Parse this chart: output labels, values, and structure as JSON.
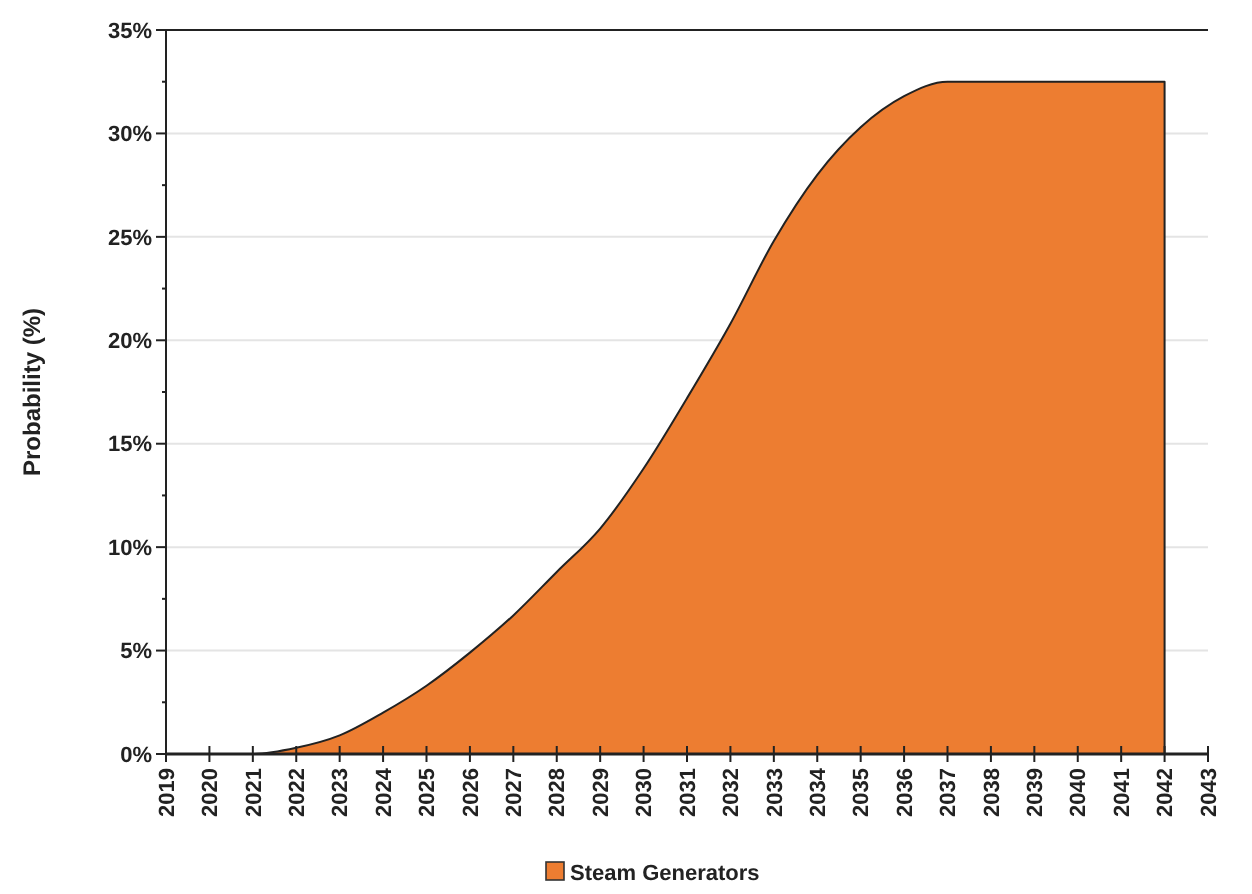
{
  "chart_data": {
    "type": "area",
    "ylabel": "Probability (%)",
    "x": [
      2019,
      2020,
      2021,
      2022,
      2023,
      2024,
      2025,
      2026,
      2027,
      2028,
      2029,
      2030,
      2031,
      2032,
      2033,
      2034,
      2035,
      2036,
      2037,
      2038,
      2039,
      2040,
      2041,
      2042
    ],
    "series": [
      {
        "name": "Steam Generators",
        "color": "#ed7d31",
        "values": [
          0,
          0,
          0,
          0.3,
          0.9,
          2.0,
          3.3,
          4.9,
          6.7,
          8.8,
          10.9,
          13.8,
          17.2,
          20.8,
          24.8,
          28.0,
          30.3,
          31.8,
          32.5,
          32.5,
          32.5,
          32.5,
          32.5,
          32.5
        ]
      }
    ],
    "xlim": [
      2019,
      2043
    ],
    "xticks": [
      2019,
      2020,
      2021,
      2022,
      2023,
      2024,
      2025,
      2026,
      2027,
      2028,
      2029,
      2030,
      2031,
      2032,
      2033,
      2034,
      2035,
      2036,
      2037,
      2038,
      2039,
      2040,
      2041,
      2042,
      2043
    ],
    "ylim": [
      0,
      35
    ],
    "yticks": [
      {
        "value": 0,
        "label": "0%"
      },
      {
        "value": 2.5,
        "label": null
      },
      {
        "value": 5,
        "label": "5%"
      },
      {
        "value": 7.5,
        "label": null
      },
      {
        "value": 10,
        "label": "10%"
      },
      {
        "value": 12.5,
        "label": null
      },
      {
        "value": 15,
        "label": "15%"
      },
      {
        "value": 17.5,
        "label": null
      },
      {
        "value": 20,
        "label": "20%"
      },
      {
        "value": 22.5,
        "label": null
      },
      {
        "value": 25,
        "label": "25%"
      },
      {
        "value": 27.5,
        "label": null
      },
      {
        "value": 30,
        "label": "30%"
      },
      {
        "value": 32.5,
        "label": null
      },
      {
        "value": 35,
        "label": "35%"
      }
    ],
    "grid": "y",
    "legend": "bottom"
  }
}
